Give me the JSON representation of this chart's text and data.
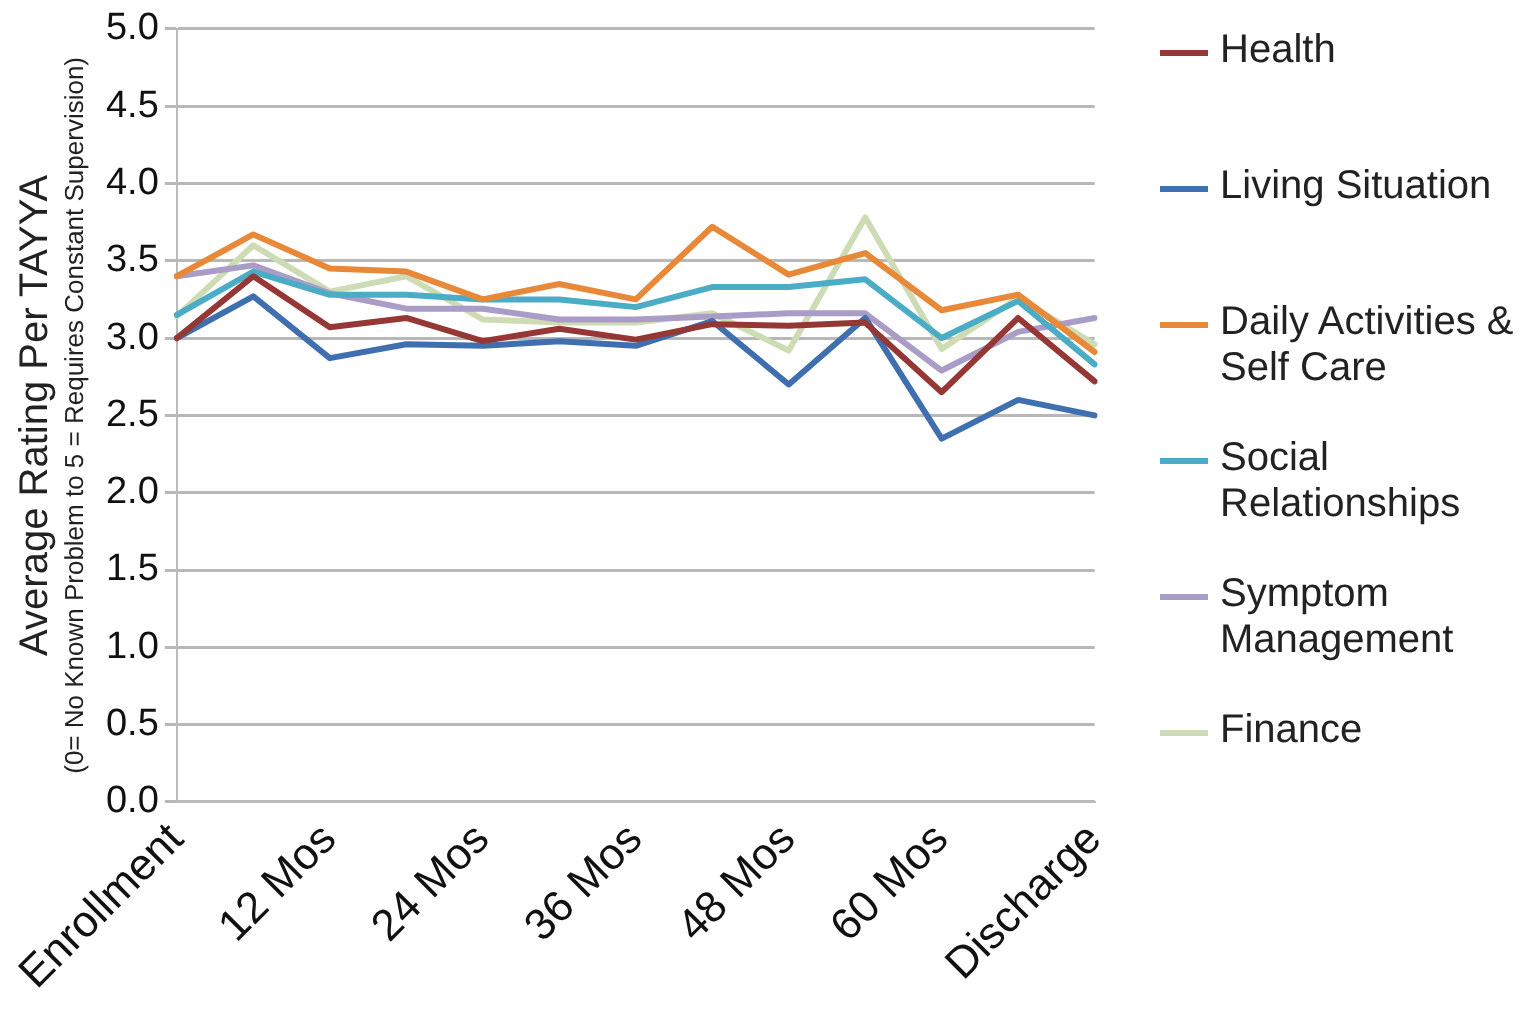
{
  "chart_data": {
    "type": "line",
    "ylabel": "Average Rating Per TAYYA\n(0= No Known Problem to 5 = Requires Constant Supervision)",
    "categories": [
      "Enrollment",
      null,
      "12 Mos",
      null,
      "24 Mos",
      null,
      "36 Mos",
      null,
      "48 Mos",
      null,
      "60 Mos",
      null,
      "Discharge"
    ],
    "series": [
      {
        "name": "Health",
        "color": "#953735",
        "values": [
          3.0,
          3.4,
          3.07,
          3.13,
          2.98,
          3.06,
          2.99,
          3.09,
          3.08,
          3.1,
          2.65,
          3.13,
          2.72
        ]
      },
      {
        "name": "Living Situation",
        "color": "#3f6fae",
        "values": [
          3.0,
          3.27,
          2.87,
          2.96,
          2.95,
          2.98,
          2.95,
          3.11,
          2.7,
          3.13,
          2.35,
          2.6,
          2.5
        ]
      },
      {
        "name": "Daily Activities & Self Care",
        "color": "#e8893a",
        "values": [
          3.4,
          3.67,
          3.45,
          3.43,
          3.25,
          3.35,
          3.25,
          3.72,
          3.41,
          3.55,
          3.18,
          3.28,
          2.91
        ]
      },
      {
        "name": "Social Relationships",
        "color": "#4bacc6",
        "values": [
          3.15,
          3.43,
          3.28,
          3.28,
          3.25,
          3.25,
          3.2,
          3.33,
          3.33,
          3.38,
          3.0,
          3.24,
          2.83
        ]
      },
      {
        "name": "Symptom Management",
        "color": "#a99cc6",
        "values": [
          3.4,
          3.47,
          3.29,
          3.19,
          3.19,
          3.12,
          3.12,
          3.14,
          3.16,
          3.16,
          2.79,
          3.04,
          3.13
        ]
      },
      {
        "name": "Finance",
        "color": "#cddcb4",
        "values": [
          3.14,
          3.6,
          3.3,
          3.4,
          3.12,
          3.1,
          3.1,
          3.16,
          2.92,
          3.78,
          2.93,
          3.26,
          2.96
        ]
      }
    ],
    "ylim": [
      0,
      5
    ],
    "yticks": [
      {
        "value": 0,
        "label": "0.0"
      },
      {
        "value": 0.5,
        "label": "0.5"
      },
      {
        "value": 1,
        "label": "1.0"
      },
      {
        "value": 1.5,
        "label": "1.5"
      },
      {
        "value": 2,
        "label": "2.0"
      },
      {
        "value": 2.5,
        "label": "2.5"
      },
      {
        "value": 3,
        "label": "3.0"
      },
      {
        "value": 3.5,
        "label": "3.5"
      },
      {
        "value": 4,
        "label": "4.0"
      },
      {
        "value": 4.5,
        "label": "4.5"
      },
      {
        "value": 5,
        "label": "5.0"
      }
    ],
    "grid": "y",
    "legend": "right",
    "marker": "none",
    "line_style": "solid"
  }
}
